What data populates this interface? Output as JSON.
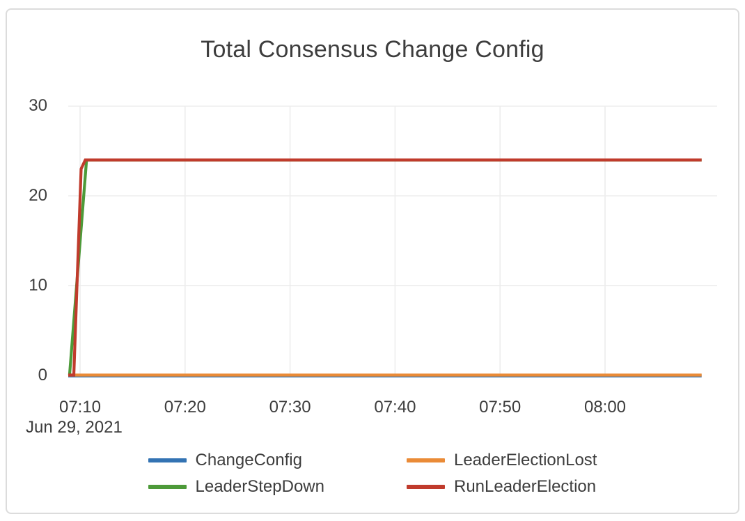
{
  "chart_data": {
    "type": "line",
    "title": "Total Consensus Change Config",
    "x_axis": {
      "tick_labels": [
        "07:10",
        "07:20",
        "07:30",
        "07:40",
        "07:50",
        "08:00"
      ],
      "tick_minutes": [
        10,
        20,
        30,
        40,
        50,
        60
      ],
      "date_label": "Jun 29, 2021",
      "range_minutes": [
        8.87,
        69.2
      ],
      "unit": "time of day (HH:MM) on Jun 29, 2021"
    },
    "y_axis": {
      "tick_labels": [
        "0",
        "10",
        "20",
        "30"
      ],
      "tick_values": [
        0,
        10,
        20,
        30
      ],
      "range": [
        0,
        30
      ]
    },
    "grid": true,
    "legend_position": "bottom",
    "series": [
      {
        "name": "ChangeConfig",
        "color": "#3373b3",
        "points": [
          [
            8.87,
            0
          ],
          [
            69.2,
            0
          ]
        ]
      },
      {
        "name": "LeaderElectionLost",
        "color": "#ea8b37",
        "points": [
          [
            8.87,
            0
          ],
          [
            69.2,
            0
          ]
        ]
      },
      {
        "name": "LeaderStepDown",
        "color": "#4d9a39",
        "points": [
          [
            8.87,
            0
          ],
          [
            9.0,
            0
          ],
          [
            10.62,
            24
          ],
          [
            69.2,
            24
          ]
        ]
      },
      {
        "name": "RunLeaderElection",
        "color": "#c03b2c",
        "points": [
          [
            8.87,
            0
          ],
          [
            9.4,
            0
          ],
          [
            10.1,
            23
          ],
          [
            10.5,
            24
          ],
          [
            69.2,
            24
          ]
        ]
      }
    ],
    "colors": {
      "text": "#3d3d3d",
      "gridline": "#ececec",
      "card_border": "#dcdcdc",
      "background": "#ffffff"
    }
  }
}
